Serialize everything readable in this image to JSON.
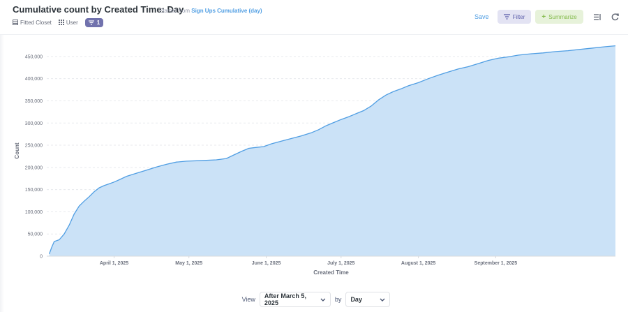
{
  "header": {
    "title": "Cumulative count by Created Time: Day",
    "subtitle_prefix": "Started from",
    "source_link": "Sign Ups Cumulative (day)",
    "meta": {
      "table": "Fitted Closet",
      "entity": "User",
      "filter_count": "1"
    },
    "actions": {
      "save": "Save",
      "filter": "Filter",
      "summarize": "Summarize"
    },
    "icons": {
      "table": "table-icon",
      "entity": "grid-icon",
      "filter_badge": "filter-icon",
      "filter_btn": "filter-icon",
      "notebook": "notebook-icon",
      "refresh": "refresh-icon"
    }
  },
  "colors": {
    "accent": "#509ee3",
    "area_fill": "#cbe2f7",
    "line": "#509ee3",
    "filter_badge": "#7172ad",
    "summarize": "#84bb4c"
  },
  "chart_data": {
    "type": "area",
    "title": "",
    "xlabel": "Created Time",
    "ylabel": "Count",
    "ylim": [
      0,
      475000
    ],
    "yticks": [
      0,
      50000,
      100000,
      150000,
      200000,
      250000,
      300000,
      350000,
      400000,
      450000
    ],
    "ytick_labels": [
      "0",
      "50,000",
      "100,000",
      "150,000",
      "200,000",
      "250,000",
      "300,000",
      "350,000",
      "400,000",
      "450,000"
    ],
    "xticks": [
      {
        "date": "2025-04-01",
        "label": "April 1, 2025"
      },
      {
        "date": "2025-05-01",
        "label": "May 1, 2025"
      },
      {
        "date": "2025-06-01",
        "label": "June 1, 2025"
      },
      {
        "date": "2025-07-01",
        "label": "July 1, 2025"
      },
      {
        "date": "2025-08-01",
        "label": "August 1, 2025"
      },
      {
        "date": "2025-09-01",
        "label": "September 1, 2025"
      }
    ],
    "grid": true,
    "series": [
      {
        "points": [
          [
            "2025-03-06",
            5000
          ],
          [
            "2025-03-07",
            20000
          ],
          [
            "2025-03-08",
            33000
          ],
          [
            "2025-03-10",
            37000
          ],
          [
            "2025-03-12",
            50000
          ],
          [
            "2025-03-14",
            70000
          ],
          [
            "2025-03-16",
            95000
          ],
          [
            "2025-03-18",
            113000
          ],
          [
            "2025-03-20",
            124000
          ],
          [
            "2025-03-22",
            134000
          ],
          [
            "2025-03-24",
            145000
          ],
          [
            "2025-03-26",
            154000
          ],
          [
            "2025-03-28",
            159000
          ],
          [
            "2025-03-30",
            163000
          ],
          [
            "2025-04-01",
            167000
          ],
          [
            "2025-04-03",
            172000
          ],
          [
            "2025-04-06",
            180000
          ],
          [
            "2025-04-10",
            187000
          ],
          [
            "2025-04-14",
            194000
          ],
          [
            "2025-04-18",
            201000
          ],
          [
            "2025-04-22",
            207000
          ],
          [
            "2025-04-26",
            212000
          ],
          [
            "2025-04-30",
            214000
          ],
          [
            "2025-05-04",
            215000
          ],
          [
            "2025-05-08",
            216000
          ],
          [
            "2025-05-12",
            217000
          ],
          [
            "2025-05-16",
            220000
          ],
          [
            "2025-05-19",
            228000
          ],
          [
            "2025-05-22",
            236000
          ],
          [
            "2025-05-25",
            243000
          ],
          [
            "2025-05-28",
            245000
          ],
          [
            "2025-05-31",
            247000
          ],
          [
            "2025-06-03",
            253000
          ],
          [
            "2025-06-07",
            259000
          ],
          [
            "2025-06-11",
            265000
          ],
          [
            "2025-06-15",
            271000
          ],
          [
            "2025-06-19",
            278000
          ],
          [
            "2025-06-22",
            285000
          ],
          [
            "2025-06-25",
            294000
          ],
          [
            "2025-06-28",
            301000
          ],
          [
            "2025-07-01",
            308000
          ],
          [
            "2025-07-04",
            314000
          ],
          [
            "2025-07-07",
            321000
          ],
          [
            "2025-07-10",
            328000
          ],
          [
            "2025-07-13",
            338000
          ],
          [
            "2025-07-16",
            352000
          ],
          [
            "2025-07-19",
            363000
          ],
          [
            "2025-07-22",
            371000
          ],
          [
            "2025-07-25",
            377000
          ],
          [
            "2025-07-28",
            384000
          ],
          [
            "2025-08-01",
            391000
          ],
          [
            "2025-08-05",
            400000
          ],
          [
            "2025-08-09",
            408000
          ],
          [
            "2025-08-13",
            415000
          ],
          [
            "2025-08-17",
            422000
          ],
          [
            "2025-08-21",
            427000
          ],
          [
            "2025-08-25",
            434000
          ],
          [
            "2025-08-29",
            441000
          ],
          [
            "2025-09-02",
            446000
          ],
          [
            "2025-09-06",
            449000
          ],
          [
            "2025-09-10",
            453000
          ],
          [
            "2025-09-15",
            456000
          ],
          [
            "2025-09-20",
            458000
          ],
          [
            "2025-09-25",
            461000
          ],
          [
            "2025-09-30",
            463000
          ],
          [
            "2025-10-05",
            466000
          ],
          [
            "2025-10-10",
            469000
          ],
          [
            "2025-10-15",
            472000
          ],
          [
            "2025-10-19",
            474000
          ]
        ]
      }
    ]
  },
  "footer": {
    "view_label": "View",
    "view_value": "After March 5, 2025",
    "by_label": "by",
    "unit_value": "Day"
  }
}
